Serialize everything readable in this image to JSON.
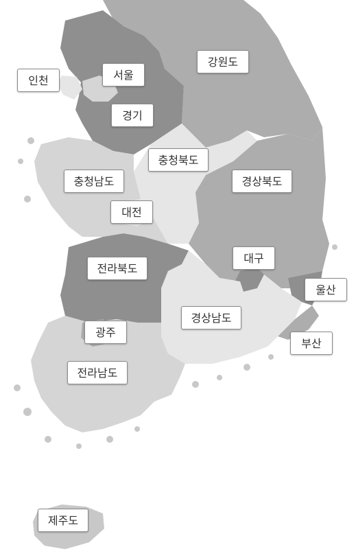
{
  "colors": {
    "dark": "#8f8f8f",
    "mid": "#adadad",
    "light": "#d5d5d5",
    "lighter": "#e6e6e6",
    "island": "#c8c8c8"
  },
  "regions": {
    "gangwon": "강원도",
    "seoul": "서울",
    "incheon": "인천",
    "gyeonggi": "경기",
    "chungbuk": "충청북도",
    "chungnam": "충청남도",
    "gyeongbuk": "경상북도",
    "daejeon": "대전",
    "daegu": "대구",
    "jeonbuk": "전라북도",
    "ulsan": "울산",
    "gyeongnam": "경상남도",
    "gwangju": "광주",
    "busan": "부산",
    "jeonnam": "전라남도",
    "jeju": "제주도"
  }
}
